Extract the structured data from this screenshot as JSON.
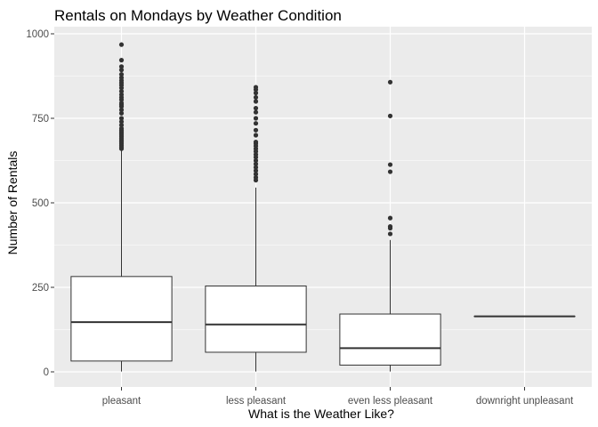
{
  "chart_data": {
    "type": "boxplot",
    "title": "Rentals on Mondays by Weather Condition",
    "xlabel": "What is the Weather Like?",
    "ylabel": "Number of Rentals",
    "ylim": [
      -35,
      1005
    ],
    "yticks": [
      0,
      250,
      500,
      750,
      1000
    ],
    "grid": true,
    "categories": [
      "pleasant",
      "less pleasant",
      "even less pleasant",
      "downright unpleasant"
    ],
    "boxes": [
      {
        "category": "pleasant",
        "whisker_low": 1,
        "q1": 32,
        "median": 147,
        "q3": 282,
        "whisker_high": 655,
        "outliers": [
          660,
          665,
          670,
          675,
          680,
          685,
          690,
          695,
          700,
          705,
          710,
          715,
          720,
          730,
          740,
          750,
          765,
          775,
          785,
          790,
          795,
          805,
          812,
          820,
          830,
          840,
          848,
          855,
          862,
          870,
          880,
          893,
          903,
          922,
          968
        ]
      },
      {
        "category": "less pleasant",
        "whisker_low": 1,
        "q1": 58,
        "median": 140,
        "q3": 254,
        "whisker_high": 545,
        "outliers": [
          567,
          575,
          585,
          595,
          605,
          615,
          625,
          635,
          643,
          652,
          660,
          668,
          675,
          680,
          700,
          715,
          735,
          750,
          768,
          780,
          800,
          812,
          825,
          835,
          842
        ]
      },
      {
        "category": "even less pleasant",
        "whisker_low": 1,
        "q1": 20,
        "median": 70,
        "q3": 171,
        "whisker_high": 390,
        "outliers": [
          408,
          425,
          430,
          455,
          592,
          613,
          757,
          857
        ]
      },
      {
        "category": "downright unpleasant",
        "whisker_low": 164,
        "q1": 164,
        "median": 164,
        "q3": 164,
        "whisker_high": 164,
        "outliers": []
      }
    ],
    "colors": {
      "panel_background": "#ebebeb",
      "grid": "#ffffff",
      "box_fill": "#ffffff",
      "box_stroke": "#333333",
      "outlier": "#333333"
    }
  }
}
